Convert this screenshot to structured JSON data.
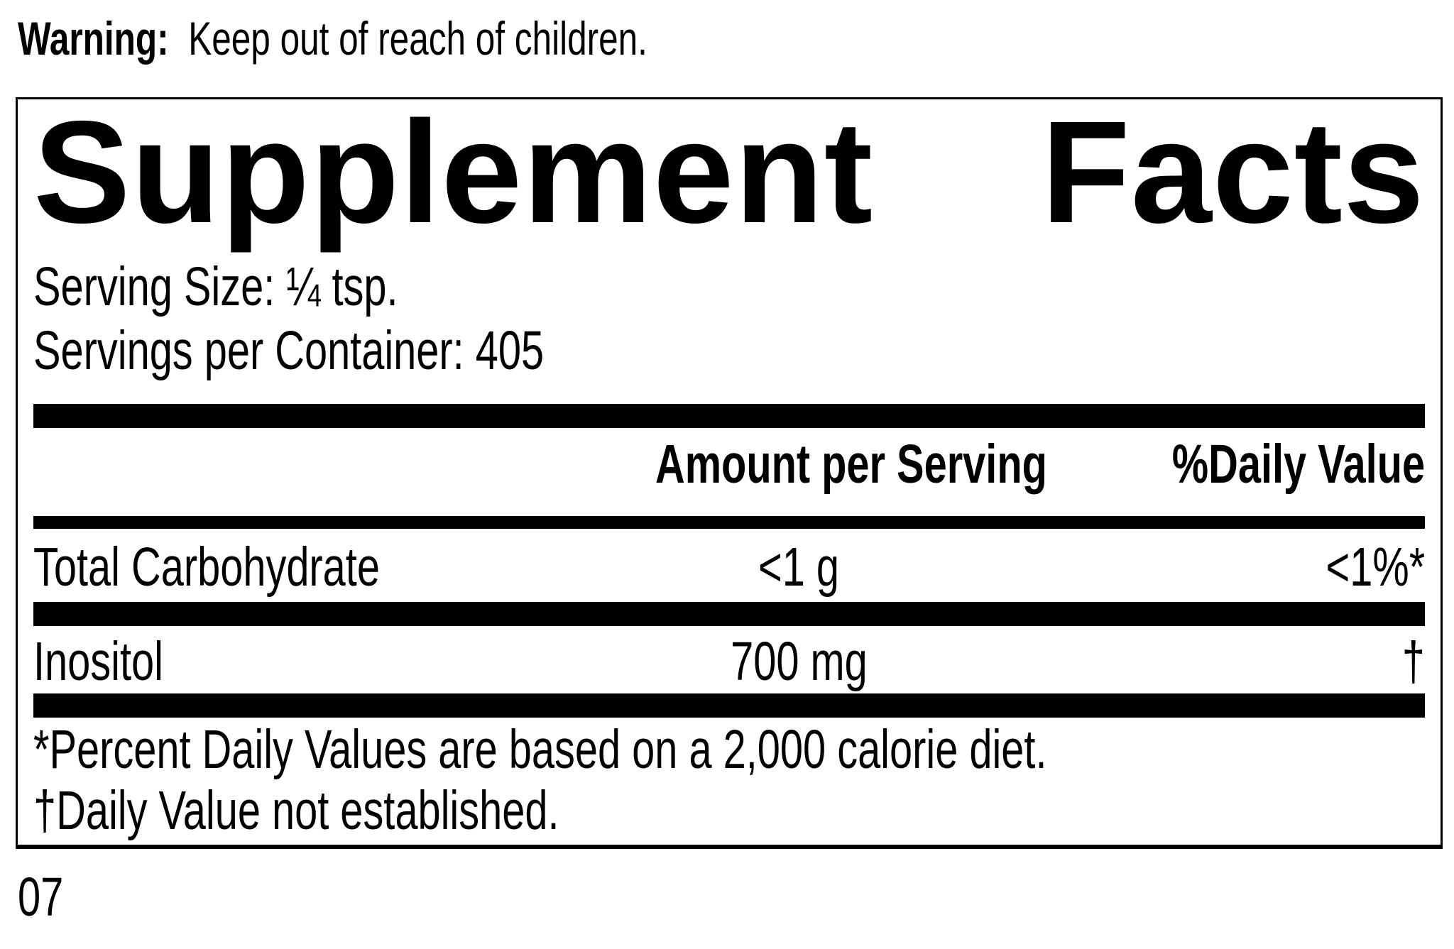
{
  "warning": {
    "label": "Warning:",
    "text": "Keep out of reach of children."
  },
  "panel": {
    "title_words": [
      "Supplement",
      "Facts"
    ],
    "serving_size": "Serving Size: ¼ tsp.",
    "servings_per_container": "Servings per Container: 405",
    "header": {
      "amount": "Amount per Serving",
      "daily_value": "%Daily Value"
    },
    "rows": [
      {
        "name": "Total Carbohydrate",
        "amount": "<1 g",
        "daily_value": "<1%*"
      },
      {
        "name": "Inositol",
        "amount": "700 mg",
        "daily_value": "†"
      }
    ],
    "footnotes": [
      "*Percent Daily Values are based on a 2,000 calorie diet.",
      "†Daily Value not established."
    ]
  },
  "page_code": "07",
  "colors": {
    "ink": "#000000",
    "paper": "#ffffff"
  }
}
